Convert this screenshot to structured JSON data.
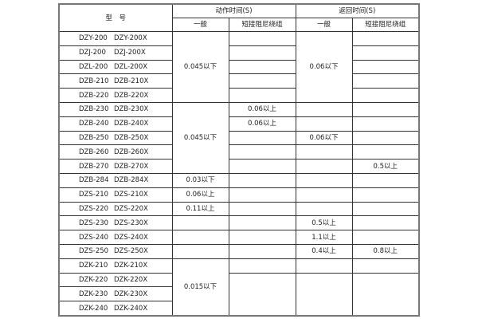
{
  "header": {
    "model": "型　号",
    "action_time": "动作时间(S)",
    "return_time": "返回时间(S)",
    "general": "一般",
    "short_damping": "短接阻尼绕组"
  },
  "rows": [
    {
      "m1": "DZY-200",
      "m2": "DZY-200X"
    },
    {
      "m1": "DZJ-200",
      "m2": "DZJ-200X"
    },
    {
      "m1": "DZL-200",
      "m2": "DZL-200X"
    },
    {
      "m1": "DZB-210",
      "m2": "DZB-210X"
    },
    {
      "m1": "DZB-220",
      "m2": "DZB-220X"
    },
    {
      "m1": "DZB-230",
      "m2": "DZB-230X"
    },
    {
      "m1": "DZB-240",
      "m2": "DZB-240X"
    },
    {
      "m1": "DZB-250",
      "m2": "DZB-250X"
    },
    {
      "m1": "DZB-260",
      "m2": "DZB-260X"
    },
    {
      "m1": "DZB-270",
      "m2": "DZB-270X"
    },
    {
      "m1": "DZB-284",
      "m2": "DZB-284X"
    },
    {
      "m1": "DZS-210",
      "m2": "DZS-210X"
    },
    {
      "m1": "DZS-220",
      "m2": "DZS-220X"
    },
    {
      "m1": "DZS-230",
      "m2": "DZS-230X"
    },
    {
      "m1": "DZS-240",
      "m2": "DZS-240X"
    },
    {
      "m1": "DZS-250",
      "m2": "DZS-250X"
    },
    {
      "m1": "DZK-210",
      "m2": "DZK-210X"
    },
    {
      "m1": "DZK-220",
      "m2": "DZK-220X"
    },
    {
      "m1": "DZK-230",
      "m2": "DZK-230X"
    },
    {
      "m1": "DZK-240",
      "m2": "DZK-240X"
    }
  ],
  "values": {
    "act_gen_a": "0.045以下",
    "act_gen_b": "0.045以下",
    "act_gen_284": "0.03以下",
    "act_gen_s210": "0.06以上",
    "act_gen_s220": "0.11以上",
    "act_gen_k": "0.015以下",
    "act_short_230": "0.06以上",
    "act_short_240": "0.06以上",
    "ret_gen_a": "0.06以下",
    "ret_gen_250": "0.06以下",
    "ret_gen_s230": "0.5以上",
    "ret_gen_s240": "1.1以上",
    "ret_gen_s250": "0.4以上",
    "ret_short_270": "0.5以上",
    "ret_short_s250": "0.8以上"
  }
}
